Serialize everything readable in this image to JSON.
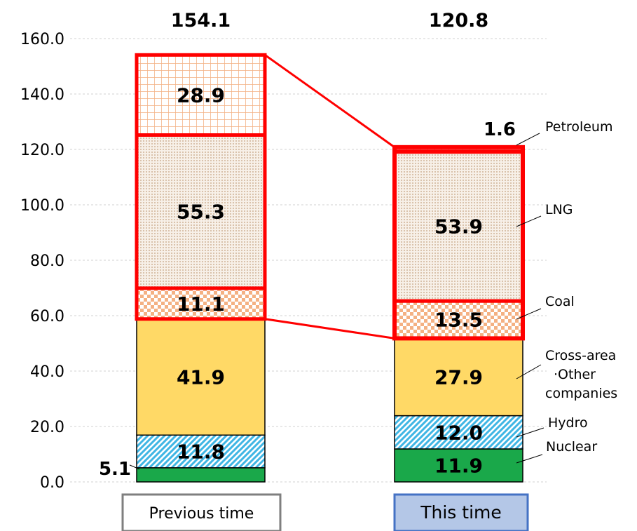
{
  "chart_data": {
    "type": "bar",
    "stacked": true,
    "categories": [
      "Previous time",
      "This time"
    ],
    "totals": [
      "154.1",
      "120.8"
    ],
    "ylim": [
      0,
      160
    ],
    "yticks": [
      "0.0",
      "20.0",
      "40.0",
      "60.0",
      "80.0",
      "100.0",
      "120.0",
      "140.0",
      "160.0"
    ],
    "grid": true,
    "series": [
      {
        "name": "Nuclear",
        "values": [
          5.1,
          11.9
        ],
        "labels": [
          "5.1",
          "11.9"
        ],
        "color": "#1aa84a",
        "pattern": "solid"
      },
      {
        "name": "Hydro",
        "values": [
          11.8,
          12.0
        ],
        "labels": [
          "11.8",
          "12.0"
        ],
        "color": "#3fb6e4",
        "pattern": "diagonal"
      },
      {
        "name": "Cross-area·Other companies",
        "values": [
          41.9,
          27.9
        ],
        "labels": [
          "41.9",
          "27.9"
        ],
        "color": "#ffd966",
        "pattern": "solid"
      },
      {
        "name": "Coal",
        "values": [
          11.1,
          13.5
        ],
        "labels": [
          "11.1",
          "13.5"
        ],
        "color": "#f4b183",
        "pattern": "checker"
      },
      {
        "name": "LNG",
        "values": [
          55.3,
          53.9
        ],
        "labels": [
          "55.3",
          "53.9"
        ],
        "color": "#ecdccb",
        "pattern": "dots"
      },
      {
        "name": "Petroleum",
        "values": [
          28.9,
          1.6
        ],
        "labels": [
          "28.9",
          "1.6"
        ],
        "color": "#f8cbad",
        "pattern": "grid"
      }
    ],
    "legend_lines": {
      "petroleum": "Petroleum",
      "lng": "LNG",
      "coal": "Coal",
      "cross_line1": "Cross-area",
      "cross_line2": "·Other",
      "cross_line3": "companies",
      "hydro": "Hydro",
      "nuclear": "Nuclear"
    },
    "highlight_color": "#ff0000"
  }
}
